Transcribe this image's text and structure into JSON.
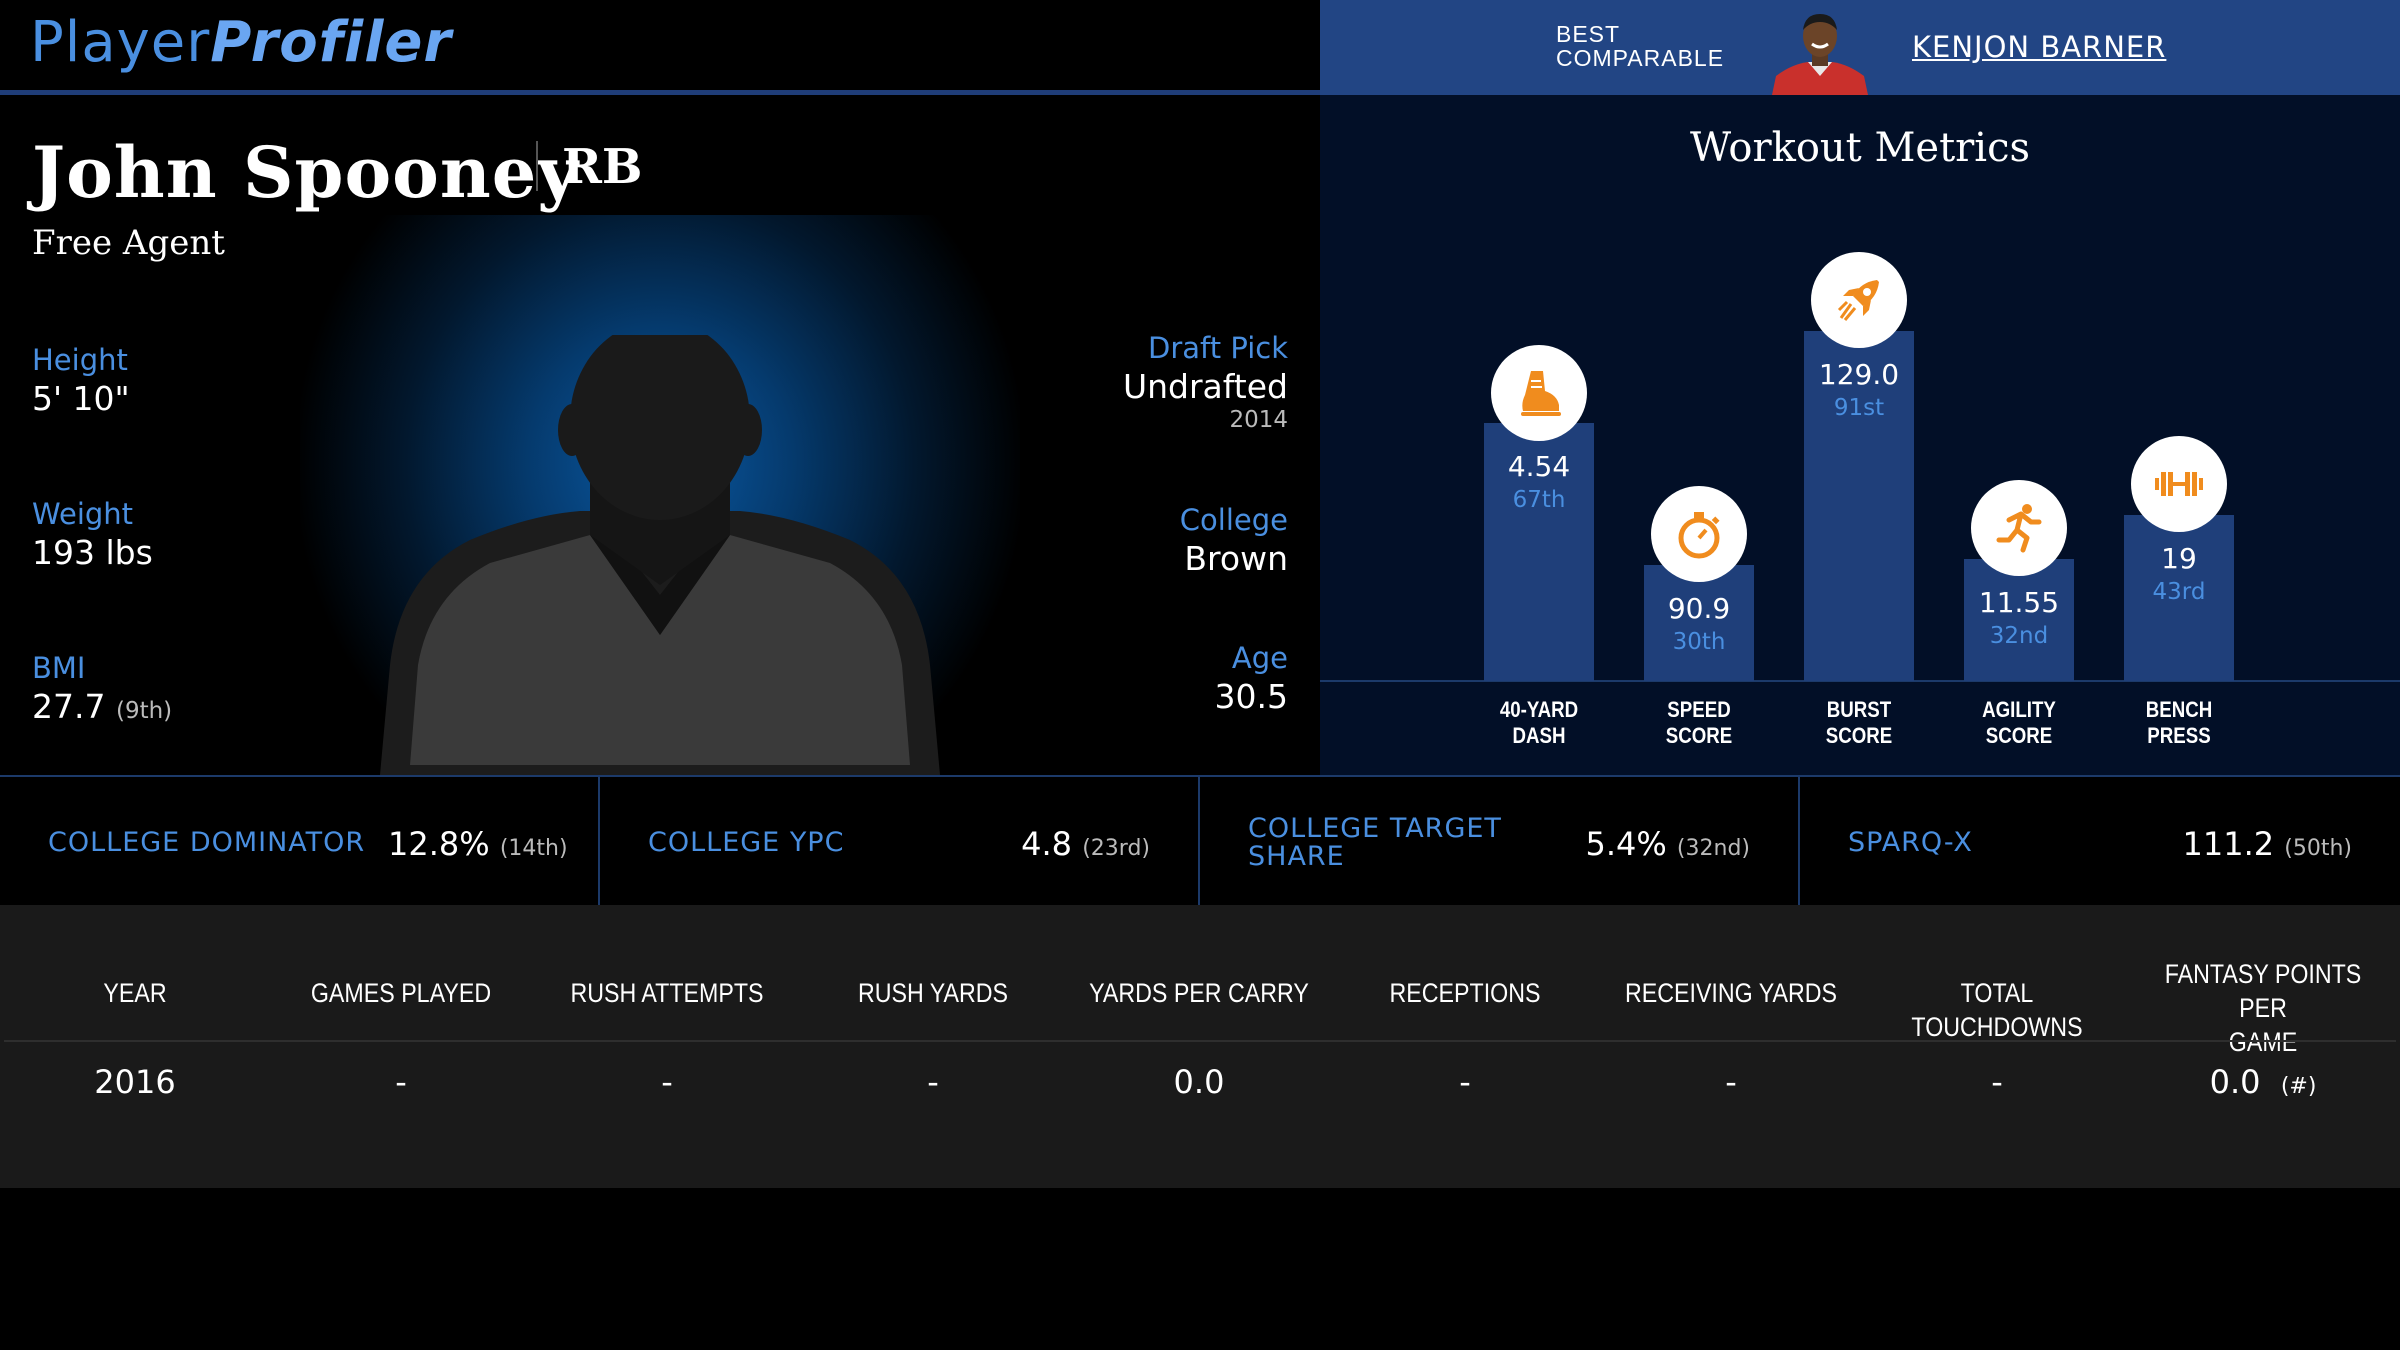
{
  "header": {
    "logo_word1": "Player",
    "logo_word2": "Profiler"
  },
  "comparable": {
    "label_line1": "BEST",
    "label_line2": "COMPARABLE",
    "name": "KENJON BARNER"
  },
  "player": {
    "name": "John Spooney",
    "position": "RB",
    "team": "Free Agent",
    "height_label": "Height",
    "height": "5' 10\"",
    "weight_label": "Weight",
    "weight": "193 lbs",
    "bmi_label": "BMI",
    "bmi": "27.7",
    "bmi_rank": "(9th)",
    "draft_label": "Draft Pick",
    "draft": "Undrafted",
    "draft_year": "2014",
    "college_label": "College",
    "college": "Brown",
    "age_label": "Age",
    "age": "30.5"
  },
  "workout": {
    "title": "Workout Metrics",
    "metrics": [
      {
        "label1": "40-YARD",
        "label2": "DASH",
        "value": "4.54",
        "percentile": "67th",
        "icon": "shoe-icon"
      },
      {
        "label1": "SPEED",
        "label2": "SCORE",
        "value": "90.9",
        "percentile": "30th",
        "icon": "stopwatch-icon"
      },
      {
        "label1": "BURST",
        "label2": "SCORE",
        "value": "129.0",
        "percentile": "91st",
        "icon": "rocket-icon"
      },
      {
        "label1": "AGILITY",
        "label2": "SCORE",
        "value": "11.55",
        "percentile": "32nd",
        "icon": "runner-icon"
      },
      {
        "label1": "BENCH",
        "label2": "PRESS",
        "value": "19",
        "percentile": "43rd",
        "icon": "dumbbell-icon"
      }
    ]
  },
  "college_stats": [
    {
      "label": "COLLEGE DOMINATOR",
      "value": "12.8%",
      "rank": "(14th)"
    },
    {
      "label": "COLLEGE YPC",
      "value": "4.8",
      "rank": "(23rd)"
    },
    {
      "label1": "COLLEGE TARGET",
      "label2": "SHARE",
      "value": "5.4%",
      "rank": "(32nd)"
    },
    {
      "label": "SPARQ-X",
      "value": "111.2",
      "rank": "(50th)"
    }
  ],
  "season_table": {
    "headers": [
      "YEAR",
      "GAMES PLAYED",
      "RUSH ATTEMPTS",
      "RUSH YARDS",
      "YARDS PER CARRY",
      "RECEPTIONS",
      "RECEIVING YARDS",
      "TOTAL TOUCHDOWNS",
      "FANTASY POINTS PER",
      "GAME"
    ],
    "rows": [
      [
        "2016",
        "-",
        "-",
        "-",
        "0.0",
        "-",
        "-",
        "-",
        "0.0",
        "(#)"
      ]
    ]
  },
  "colors": {
    "accent_blue": "#4a8fe0",
    "bar_blue": "#1f3f7a",
    "comparable_bar": "#224584",
    "icon_orange": "#f08c1e"
  }
}
